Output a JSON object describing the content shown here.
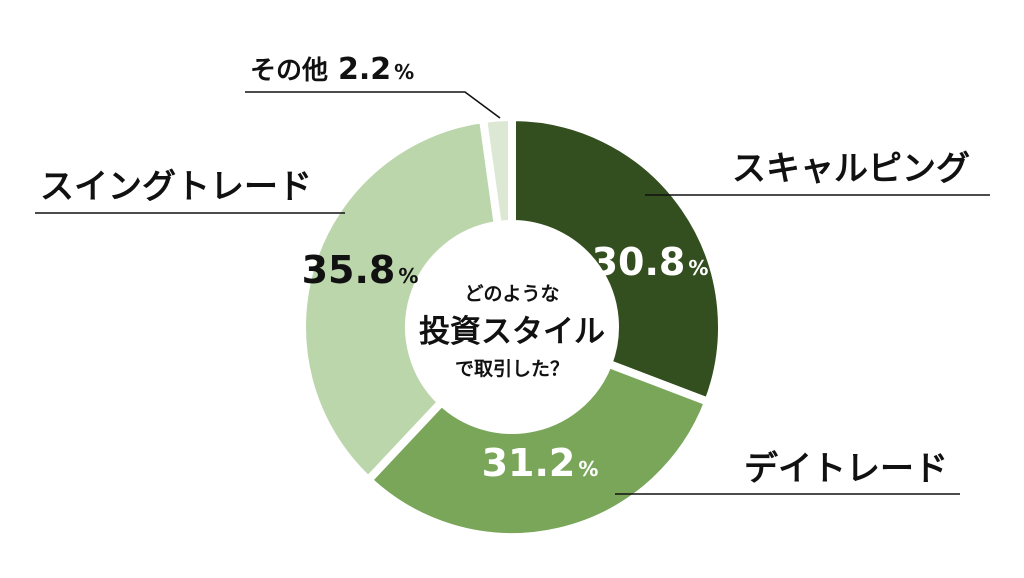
{
  "chart_data": {
    "type": "pie",
    "categories": [
      "スキャルピング",
      "デイトレード",
      "スイングトレード",
      "その他"
    ],
    "values": [
      30.8,
      31.2,
      35.8,
      2.2
    ],
    "unit": "%",
    "center_text": [
      "どのような",
      "投資スタイル",
      "で取引した？"
    ],
    "colors": [
      "#344f1f",
      "#7aa65a",
      "#bcd6ac",
      "#dce8d4"
    ],
    "value_label_colors": [
      "#ffffff",
      "#ffffff",
      "#111111",
      "#111111"
    ],
    "legend": "none"
  }
}
